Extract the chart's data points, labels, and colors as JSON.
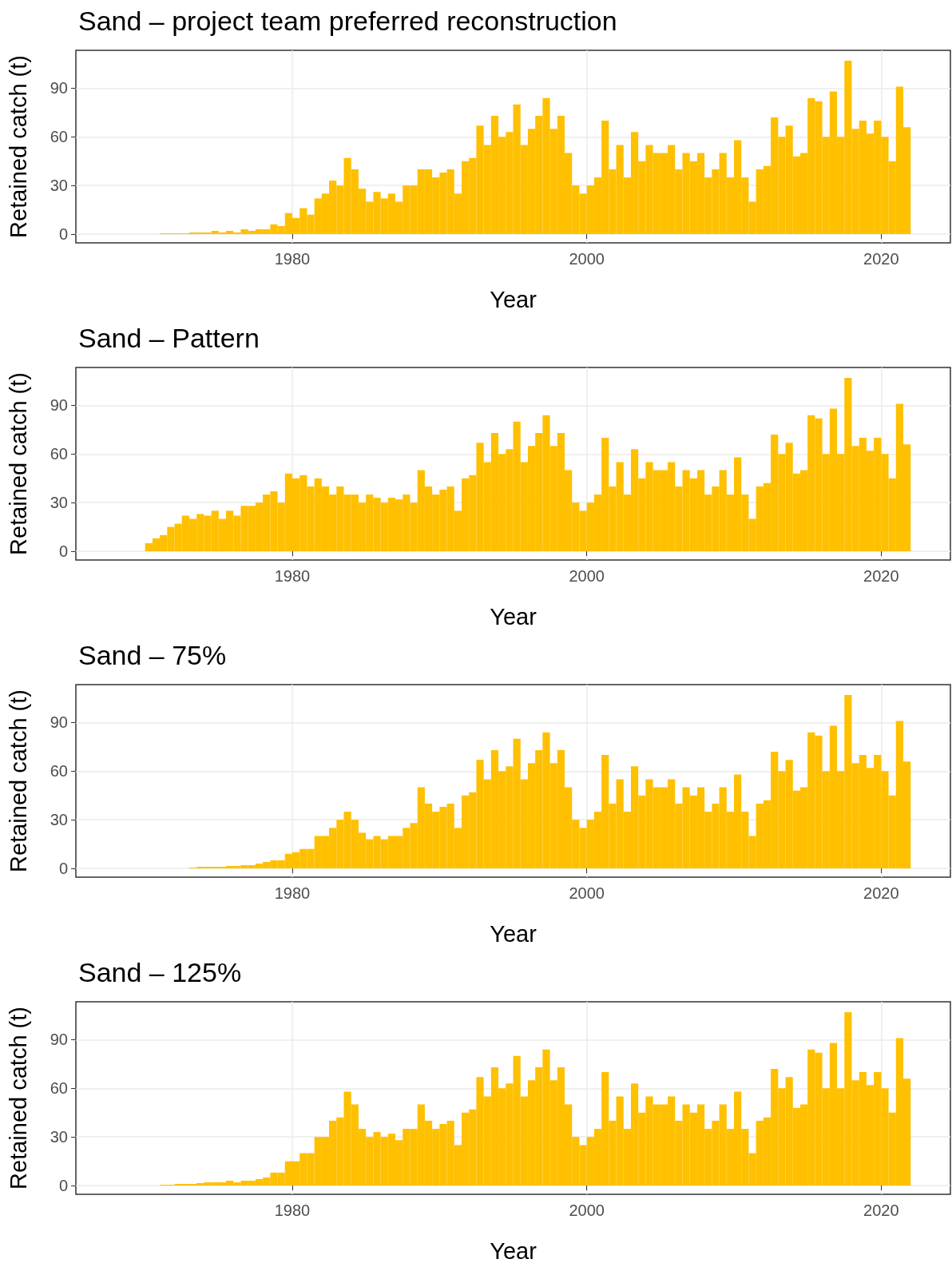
{
  "chart_data": [
    {
      "type": "bar",
      "title": "Sand – project team preferred reconstruction",
      "xlabel": "Year",
      "ylabel": "Retained catch (t)",
      "color": "#ffc000",
      "xlim": [
        1965.3,
        2024.7
      ],
      "xticks": [
        1980,
        2000,
        2020
      ],
      "ylim": [
        -5.4,
        113.4
      ],
      "yticks": [
        0,
        30,
        60,
        90
      ],
      "grid": true,
      "x": [
        1968.25,
        1968.75,
        1969.25,
        1969.75,
        1970.25,
        1970.75,
        1971.25,
        1971.75,
        1972.25,
        1972.75,
        1973.25,
        1973.75,
        1974.25,
        1974.75,
        1975.25,
        1975.75,
        1976.25,
        1976.75,
        1977.25,
        1977.75,
        1978.25,
        1978.75,
        1979.25,
        1979.75,
        1980.25,
        1980.75,
        1981.25,
        1981.75,
        1982.25,
        1982.75,
        1983.25,
        1983.75,
        1984.25,
        1984.75,
        1985.25,
        1985.75,
        1986.25,
        1986.75,
        1987.25,
        1987.75,
        1988.25,
        1988.75,
        1989.25,
        1989.75,
        1990.25,
        1990.75,
        1991.25,
        1991.75,
        1992.25,
        1992.75,
        1993.25,
        1993.75,
        1994.25,
        1994.75,
        1995.25,
        1995.75,
        1996.25,
        1996.75,
        1997.25,
        1997.75,
        1998.25,
        1998.75,
        1999.25,
        1999.75,
        2000.25,
        2000.75,
        2001.25,
        2001.75,
        2002.25,
        2002.75,
        2003.25,
        2003.75,
        2004.25,
        2004.75,
        2005.25,
        2005.75,
        2006.25,
        2006.75,
        2007.25,
        2007.75,
        2008.25,
        2008.75,
        2009.25,
        2009.75,
        2010.25,
        2010.75,
        2011.25,
        2011.75,
        2012.25,
        2012.75,
        2013.25,
        2013.75,
        2014.25,
        2014.75,
        2015.25,
        2015.75,
        2016.25,
        2016.75,
        2017.25,
        2017.75,
        2018.25,
        2018.75,
        2019.25,
        2019.75,
        2020.25,
        2020.75,
        2021.25,
        2021.75
      ],
      "values": [
        0,
        0,
        0,
        0,
        0,
        0,
        0.5,
        0.5,
        0.5,
        0.5,
        1,
        1,
        1,
        2,
        1,
        2,
        1,
        3,
        2,
        3,
        3,
        6,
        5,
        13,
        10,
        16,
        12,
        22,
        25,
        33,
        30,
        47,
        40,
        28,
        20,
        26,
        22,
        25,
        20,
        30,
        30,
        40,
        40,
        35,
        38,
        40,
        25,
        45,
        47,
        67,
        55,
        73,
        60,
        63,
        80,
        55,
        65,
        73,
        84,
        65,
        73,
        50,
        30,
        25,
        30,
        35,
        70,
        40,
        55,
        35,
        63,
        45,
        55,
        50,
        50,
        55,
        40,
        50,
        45,
        50,
        35,
        40,
        50,
        35,
        58,
        35,
        20,
        40,
        42,
        72,
        60,
        67,
        48,
        50,
        84,
        82,
        60,
        88,
        60,
        107,
        65,
        70,
        62,
        70,
        60,
        45,
        91,
        66
      ]
    },
    {
      "type": "bar",
      "title": "Sand – Pattern",
      "xlabel": "Year",
      "ylabel": "Retained catch (t)",
      "color": "#ffc000",
      "xlim": [
        1965.3,
        2024.7
      ],
      "xticks": [
        1980,
        2000,
        2020
      ],
      "ylim": [
        -5.4,
        113.4
      ],
      "yticks": [
        0,
        30,
        60,
        90
      ],
      "grid": true,
      "x": [
        1968.25,
        1968.75,
        1969.25,
        1969.75,
        1970.25,
        1970.75,
        1971.25,
        1971.75,
        1972.25,
        1972.75,
        1973.25,
        1973.75,
        1974.25,
        1974.75,
        1975.25,
        1975.75,
        1976.25,
        1976.75,
        1977.25,
        1977.75,
        1978.25,
        1978.75,
        1979.25,
        1979.75,
        1980.25,
        1980.75,
        1981.25,
        1981.75,
        1982.25,
        1982.75,
        1983.25,
        1983.75,
        1984.25,
        1984.75,
        1985.25,
        1985.75,
        1986.25,
        1986.75,
        1987.25,
        1987.75,
        1988.25,
        1988.75,
        1989.25,
        1989.75,
        1990.25,
        1990.75,
        1991.25,
        1991.75,
        1992.25,
        1992.75,
        1993.25,
        1993.75,
        1994.25,
        1994.75,
        1995.25,
        1995.75,
        1996.25,
        1996.75,
        1997.25,
        1997.75,
        1998.25,
        1998.75,
        1999.25,
        1999.75,
        2000.25,
        2000.75,
        2001.25,
        2001.75,
        2002.25,
        2002.75,
        2003.25,
        2003.75,
        2004.25,
        2004.75,
        2005.25,
        2005.75,
        2006.25,
        2006.75,
        2007.25,
        2007.75,
        2008.25,
        2008.75,
        2009.25,
        2009.75,
        2010.25,
        2010.75,
        2011.25,
        2011.75,
        2012.25,
        2012.75,
        2013.25,
        2013.75,
        2014.25,
        2014.75,
        2015.25,
        2015.75,
        2016.25,
        2016.75,
        2017.25,
        2017.75,
        2018.25,
        2018.75,
        2019.25,
        2019.75,
        2020.25,
        2020.75,
        2021.25,
        2021.75
      ],
      "values": [
        0,
        0,
        0,
        0,
        5,
        8,
        10,
        15,
        17,
        22,
        20,
        23,
        22,
        25,
        20,
        25,
        22,
        28,
        28,
        30,
        35,
        37,
        30,
        48,
        45,
        47,
        40,
        45,
        40,
        35,
        40,
        35,
        35,
        30,
        35,
        33,
        30,
        33,
        32,
        35,
        30,
        50,
        40,
        35,
        38,
        40,
        25,
        45,
        47,
        67,
        55,
        73,
        60,
        63,
        80,
        55,
        65,
        73,
        84,
        65,
        73,
        50,
        30,
        25,
        30,
        35,
        70,
        40,
        55,
        35,
        63,
        45,
        55,
        50,
        50,
        55,
        40,
        50,
        45,
        50,
        35,
        40,
        50,
        35,
        58,
        35,
        20,
        40,
        42,
        72,
        60,
        67,
        48,
        50,
        84,
        82,
        60,
        88,
        60,
        107,
        65,
        70,
        62,
        70,
        60,
        45,
        91,
        66
      ]
    },
    {
      "type": "bar",
      "title": "Sand – 75%",
      "xlabel": "Year",
      "ylabel": "Retained catch (t)",
      "color": "#ffc000",
      "xlim": [
        1965.3,
        2024.7
      ],
      "xticks": [
        1980,
        2000,
        2020
      ],
      "ylim": [
        -5.4,
        113.4
      ],
      "yticks": [
        0,
        30,
        60,
        90
      ],
      "grid": true,
      "x": [
        1968.25,
        1968.75,
        1969.25,
        1969.75,
        1970.25,
        1970.75,
        1971.25,
        1971.75,
        1972.25,
        1972.75,
        1973.25,
        1973.75,
        1974.25,
        1974.75,
        1975.25,
        1975.75,
        1976.25,
        1976.75,
        1977.25,
        1977.75,
        1978.25,
        1978.75,
        1979.25,
        1979.75,
        1980.25,
        1980.75,
        1981.25,
        1981.75,
        1982.25,
        1982.75,
        1983.25,
        1983.75,
        1984.25,
        1984.75,
        1985.25,
        1985.75,
        1986.25,
        1986.75,
        1987.25,
        1987.75,
        1988.25,
        1988.75,
        1989.25,
        1989.75,
        1990.25,
        1990.75,
        1991.25,
        1991.75,
        1992.25,
        1992.75,
        1993.25,
        1993.75,
        1994.25,
        1994.75,
        1995.25,
        1995.75,
        1996.25,
        1996.75,
        1997.25,
        1997.75,
        1998.25,
        1998.75,
        1999.25,
        1999.75,
        2000.25,
        2000.75,
        2001.25,
        2001.75,
        2002.25,
        2002.75,
        2003.25,
        2003.75,
        2004.25,
        2004.75,
        2005.25,
        2005.75,
        2006.25,
        2006.75,
        2007.25,
        2007.75,
        2008.25,
        2008.75,
        2009.25,
        2009.75,
        2010.25,
        2010.75,
        2011.25,
        2011.75,
        2012.25,
        2012.75,
        2013.25,
        2013.75,
        2014.25,
        2014.75,
        2015.25,
        2015.75,
        2016.25,
        2016.75,
        2017.25,
        2017.75,
        2018.25,
        2018.75,
        2019.25,
        2019.75,
        2020.25,
        2020.75,
        2021.25,
        2021.75
      ],
      "values": [
        0,
        0,
        0,
        0,
        0,
        0,
        0,
        0,
        0,
        0,
        0.5,
        1,
        1,
        1,
        1,
        1.5,
        1.5,
        2,
        2,
        3,
        4,
        5,
        5,
        9,
        10,
        12,
        12,
        20,
        20,
        25,
        30,
        35,
        30,
        22,
        18,
        20,
        18,
        20,
        20,
        25,
        28,
        50,
        40,
        35,
        38,
        40,
        25,
        45,
        47,
        67,
        55,
        73,
        60,
        63,
        80,
        55,
        65,
        73,
        84,
        65,
        73,
        50,
        30,
        25,
        30,
        35,
        70,
        40,
        55,
        35,
        63,
        45,
        55,
        50,
        50,
        55,
        40,
        50,
        45,
        50,
        35,
        40,
        50,
        35,
        58,
        35,
        20,
        40,
        42,
        72,
        60,
        67,
        48,
        50,
        84,
        82,
        60,
        88,
        60,
        107,
        65,
        70,
        62,
        70,
        60,
        45,
        91,
        66
      ]
    },
    {
      "type": "bar",
      "title": "Sand – 125%",
      "xlabel": "Year",
      "ylabel": "Retained catch (t)",
      "color": "#ffc000",
      "xlim": [
        1965.3,
        2024.7
      ],
      "xticks": [
        1980,
        2000,
        2020
      ],
      "ylim": [
        -5.4,
        113.4
      ],
      "yticks": [
        0,
        30,
        60,
        90
      ],
      "grid": true,
      "x": [
        1968.25,
        1968.75,
        1969.25,
        1969.75,
        1970.25,
        1970.75,
        1971.25,
        1971.75,
        1972.25,
        1972.75,
        1973.25,
        1973.75,
        1974.25,
        1974.75,
        1975.25,
        1975.75,
        1976.25,
        1976.75,
        1977.25,
        1977.75,
        1978.25,
        1978.75,
        1979.25,
        1979.75,
        1980.25,
        1980.75,
        1981.25,
        1981.75,
        1982.25,
        1982.75,
        1983.25,
        1983.75,
        1984.25,
        1984.75,
        1985.25,
        1985.75,
        1986.25,
        1986.75,
        1987.25,
        1987.75,
        1988.25,
        1988.75,
        1989.25,
        1989.75,
        1990.25,
        1990.75,
        1991.25,
        1991.75,
        1992.25,
        1992.75,
        1993.25,
        1993.75,
        1994.25,
        1994.75,
        1995.25,
        1995.75,
        1996.25,
        1996.75,
        1997.25,
        1997.75,
        1998.25,
        1998.75,
        1999.25,
        1999.75,
        2000.25,
        2000.75,
        2001.25,
        2001.75,
        2002.25,
        2002.75,
        2003.25,
        2003.75,
        2004.25,
        2004.75,
        2005.25,
        2005.75,
        2006.25,
        2006.75,
        2007.25,
        2007.75,
        2008.25,
        2008.75,
        2009.25,
        2009.75,
        2010.25,
        2010.75,
        2011.25,
        2011.75,
        2012.25,
        2012.75,
        2013.25,
        2013.75,
        2014.25,
        2014.75,
        2015.25,
        2015.75,
        2016.25,
        2016.75,
        2017.25,
        2017.75,
        2018.25,
        2018.75,
        2019.25,
        2019.75,
        2020.25,
        2020.75,
        2021.25,
        2021.75
      ],
      "values": [
        0,
        0,
        0,
        0,
        0,
        0,
        0.5,
        0.5,
        1,
        1,
        1,
        1.5,
        2,
        2,
        2,
        3,
        2,
        3,
        3,
        4,
        5,
        8,
        8,
        15,
        15,
        20,
        20,
        30,
        30,
        40,
        42,
        58,
        50,
        35,
        30,
        33,
        30,
        32,
        28,
        35,
        35,
        50,
        40,
        35,
        38,
        40,
        25,
        45,
        47,
        67,
        55,
        73,
        60,
        63,
        80,
        55,
        65,
        73,
        84,
        65,
        73,
        50,
        30,
        25,
        30,
        35,
        70,
        40,
        55,
        35,
        63,
        45,
        55,
        50,
        50,
        55,
        40,
        50,
        45,
        50,
        35,
        40,
        50,
        35,
        58,
        35,
        20,
        40,
        42,
        72,
        60,
        67,
        48,
        50,
        84,
        82,
        60,
        88,
        60,
        107,
        65,
        70,
        62,
        70,
        60,
        45,
        91,
        66
      ]
    }
  ]
}
